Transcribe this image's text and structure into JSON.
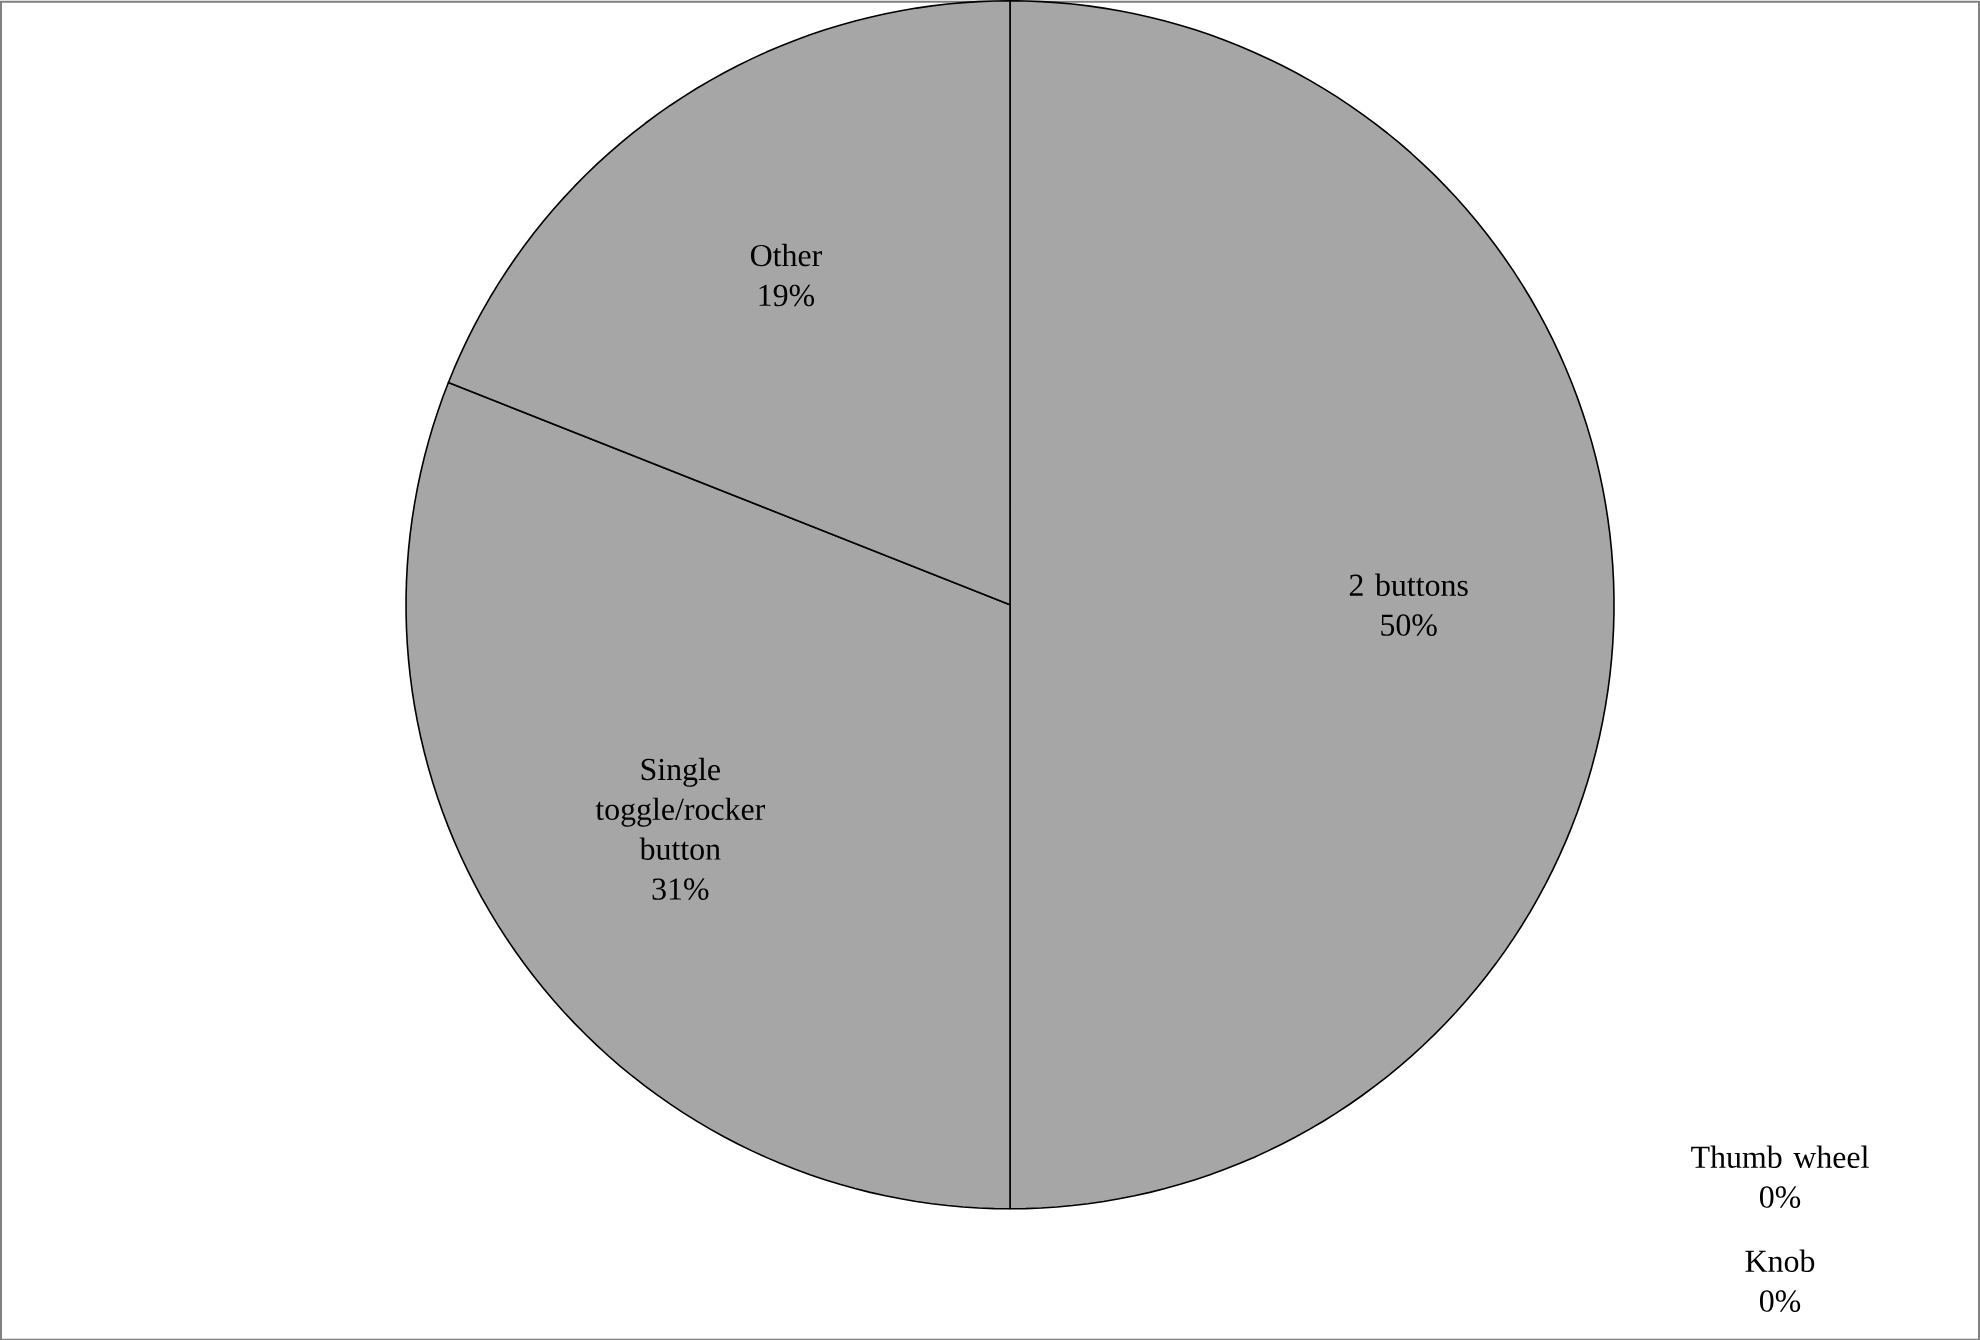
{
  "chart_data": {
    "type": "pie",
    "categories": [
      "2 buttons",
      "Thumb wheel",
      "Knob",
      "Single toggle/rocker button",
      "Other"
    ],
    "values": [
      50,
      0,
      0,
      31,
      19
    ],
    "value_labels": [
      "50%",
      "0%",
      "0%",
      "31%",
      "19%"
    ],
    "colors": [
      "#a6a6a6",
      "#a6a6a6",
      "#a6a6a6",
      "#a6a6a6",
      "#a6a6a6"
    ]
  }
}
